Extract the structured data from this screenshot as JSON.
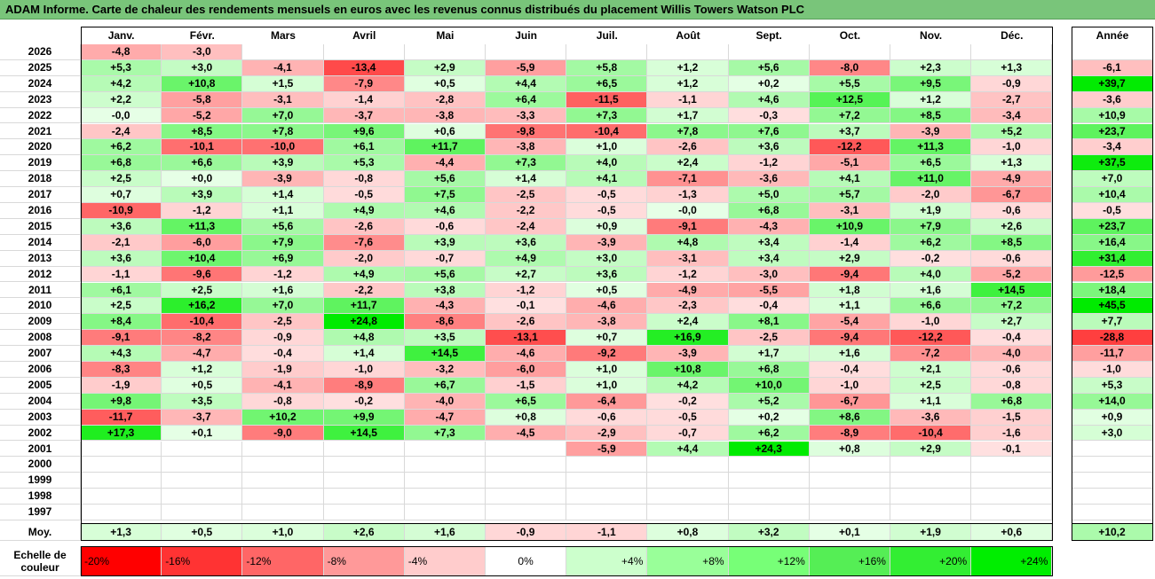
{
  "title": "ADAM Informe. Carte de chaleur des rendements mensuels en euros avec les revenus connus distribués du placement Willis Towers Watson PLC",
  "months": [
    "Janv.",
    "Févr.",
    "Mars",
    "Avril",
    "Mai",
    "Juin",
    "Juil.",
    "Août",
    "Sept.",
    "Oct.",
    "Nov.",
    "Déc."
  ],
  "year_col_label": "Année",
  "avg_label": "Moy.",
  "scale_label": "Echelle de couleur",
  "chart_data": {
    "type": "heatmap",
    "title": "ADAM Informe. Carte de chaleur des rendements mensuels en euros avec les revenus connus distribués du placement Willis Towers Watson PLC",
    "columns": [
      "Janv.",
      "Févr.",
      "Mars",
      "Avril",
      "Mai",
      "Juin",
      "Juil.",
      "Août",
      "Sept.",
      "Oct.",
      "Nov.",
      "Déc."
    ],
    "rows": [
      {
        "year": "2026",
        "values": [
          "-4,8",
          "-3,0",
          "",
          "",
          "",
          "",
          "",
          "",
          "",
          "",
          "",
          ""
        ],
        "annual": ""
      },
      {
        "year": "2025",
        "values": [
          "+5,3",
          "+3,0",
          "-4,1",
          "-13,4",
          "+2,9",
          "-5,9",
          "+5,8",
          "+1,2",
          "+5,6",
          "-8,0",
          "+2,3",
          "+1,3"
        ],
        "annual": "-6,1"
      },
      {
        "year": "2024",
        "values": [
          "+4,2",
          "+10,8",
          "+1,5",
          "-7,9",
          "+0,5",
          "+4,4",
          "+6,5",
          "+1,2",
          "+0,2",
          "+5,5",
          "+9,5",
          "-0,9"
        ],
        "annual": "+39,7"
      },
      {
        "year": "2023",
        "values": [
          "+2,2",
          "-5,8",
          "-3,1",
          "-1,4",
          "-2,8",
          "+6,4",
          "-11,5",
          "-1,1",
          "+4,6",
          "+12,5",
          "+1,2",
          "-2,7"
        ],
        "annual": "-3,6"
      },
      {
        "year": "2022",
        "values": [
          "-0,0",
          "-5,2",
          "+7,0",
          "-3,7",
          "-3,8",
          "-3,3",
          "+7,3",
          "+1,7",
          "-0,3",
          "+7,2",
          "+8,5",
          "-3,4"
        ],
        "annual": "+10,9"
      },
      {
        "year": "2021",
        "values": [
          "-2,4",
          "+8,5",
          "+7,8",
          "+9,6",
          "+0,6",
          "-9,8",
          "-10,4",
          "+7,8",
          "+7,6",
          "+3,7",
          "-3,9",
          "+5,2"
        ],
        "annual": "+23,7"
      },
      {
        "year": "2020",
        "values": [
          "+6,2",
          "-10,1",
          "-10,0",
          "+6,1",
          "+11,7",
          "-3,8",
          "+1,0",
          "-2,6",
          "+3,6",
          "-12,2",
          "+11,3",
          "-1,0"
        ],
        "annual": "-3,4"
      },
      {
        "year": "2019",
        "values": [
          "+6,8",
          "+6,6",
          "+3,9",
          "+5,3",
          "-4,4",
          "+7,3",
          "+4,0",
          "+2,4",
          "-1,2",
          "-5,1",
          "+6,5",
          "+1,3"
        ],
        "annual": "+37,5"
      },
      {
        "year": "2018",
        "values": [
          "+2,5",
          "+0,0",
          "-3,9",
          "-0,8",
          "+5,6",
          "+1,4",
          "+4,1",
          "-7,1",
          "-3,6",
          "+4,1",
          "+11,0",
          "-4,9"
        ],
        "annual": "+7,0"
      },
      {
        "year": "2017",
        "values": [
          "+0,7",
          "+3,9",
          "+1,4",
          "-0,5",
          "+7,5",
          "-2,5",
          "-0,5",
          "-1,3",
          "+5,0",
          "+5,7",
          "-2,0",
          "-6,7"
        ],
        "annual": "+10,4"
      },
      {
        "year": "2016",
        "values": [
          "-10,9",
          "-1,2",
          "+1,1",
          "+4,9",
          "+4,6",
          "-2,2",
          "-0,5",
          "-0,0",
          "+6,8",
          "-3,1",
          "+1,9",
          "-0,6"
        ],
        "annual": "-0,5"
      },
      {
        "year": "2015",
        "values": [
          "+3,6",
          "+11,3",
          "+5,6",
          "-2,6",
          "-0,6",
          "-2,4",
          "+0,9",
          "-9,1",
          "-4,3",
          "+10,9",
          "+7,9",
          "+2,6"
        ],
        "annual": "+23,7"
      },
      {
        "year": "2014",
        "values": [
          "-2,1",
          "-6,0",
          "+7,9",
          "-7,6",
          "+3,9",
          "+3,6",
          "-3,9",
          "+4,8",
          "+3,4",
          "-1,4",
          "+6,2",
          "+8,5"
        ],
        "annual": "+16,4"
      },
      {
        "year": "2013",
        "values": [
          "+3,6",
          "+10,4",
          "+6,9",
          "-2,0",
          "-0,7",
          "+4,9",
          "+3,0",
          "-3,1",
          "+3,4",
          "+2,9",
          "-0,2",
          "-0,6"
        ],
        "annual": "+31,4"
      },
      {
        "year": "2012",
        "values": [
          "-1,1",
          "-9,6",
          "-1,2",
          "+4,9",
          "+5,6",
          "+2,7",
          "+3,6",
          "-1,2",
          "-3,0",
          "-9,4",
          "+4,0",
          "-5,2"
        ],
        "annual": "-12,5"
      },
      {
        "year": "2011",
        "values": [
          "+6,1",
          "+2,5",
          "+1,6",
          "-2,2",
          "+3,8",
          "-1,2",
          "+0,5",
          "-4,9",
          "-5,5",
          "+1,8",
          "+1,6",
          "+14,5"
        ],
        "annual": "+18,4"
      },
      {
        "year": "2010",
        "values": [
          "+2,5",
          "+16,2",
          "+7,0",
          "+11,7",
          "-4,3",
          "-0,1",
          "-4,6",
          "-2,3",
          "-0,4",
          "+1,1",
          "+6,6",
          "+7,2"
        ],
        "annual": "+45,5"
      },
      {
        "year": "2009",
        "values": [
          "+8,4",
          "-10,4",
          "-2,5",
          "+24,8",
          "-8,6",
          "-2,6",
          "-3,8",
          "+2,4",
          "+8,1",
          "-5,4",
          "-1,0",
          "+2,7"
        ],
        "annual": "+7,7"
      },
      {
        "year": "2008",
        "values": [
          "-9,1",
          "-8,2",
          "-0,9",
          "+4,8",
          "+3,5",
          "-13,1",
          "+0,7",
          "+16,9",
          "-2,5",
          "-9,4",
          "-12,2",
          "-0,4"
        ],
        "annual": "-28,8"
      },
      {
        "year": "2007",
        "values": [
          "+4,3",
          "-4,7",
          "-0,4",
          "+1,4",
          "+14,5",
          "-4,6",
          "-9,2",
          "-3,9",
          "+1,7",
          "+1,6",
          "-7,2",
          "-4,0"
        ],
        "annual": "-11,7"
      },
      {
        "year": "2006",
        "values": [
          "-8,3",
          "+1,2",
          "-1,9",
          "-1,0",
          "-3,2",
          "-6,0",
          "+1,0",
          "+10,8",
          "+6,8",
          "-0,4",
          "+2,1",
          "-0,6"
        ],
        "annual": "-1,0"
      },
      {
        "year": "2005",
        "values": [
          "-1,9",
          "+0,5",
          "-4,1",
          "-8,9",
          "+6,7",
          "-1,5",
          "+1,0",
          "+4,2",
          "+10,0",
          "-1,0",
          "+2,5",
          "-0,8"
        ],
        "annual": "+5,3"
      },
      {
        "year": "2004",
        "values": [
          "+9,8",
          "+3,5",
          "-0,8",
          "-0,2",
          "-4,0",
          "+6,5",
          "-6,4",
          "-0,2",
          "+5,2",
          "-6,7",
          "+1,1",
          "+6,8"
        ],
        "annual": "+14,0"
      },
      {
        "year": "2003",
        "values": [
          "-11,7",
          "-3,7",
          "+10,2",
          "+9,9",
          "-4,7",
          "+0,8",
          "-0,6",
          "-0,5",
          "+0,2",
          "+8,6",
          "-3,6",
          "-1,5"
        ],
        "annual": "+0,9"
      },
      {
        "year": "2002",
        "values": [
          "+17,3",
          "+0,1",
          "-9,0",
          "+14,5",
          "+7,3",
          "-4,5",
          "-2,9",
          "-0,7",
          "+6,2",
          "-8,9",
          "-10,4",
          "-1,6"
        ],
        "annual": "+3,0"
      },
      {
        "year": "2001",
        "values": [
          "",
          "",
          "",
          "",
          "",
          "",
          "-5,9",
          "+4,4",
          "+24,3",
          "+0,8",
          "+2,9",
          "-0,1"
        ],
        "annual": ""
      },
      {
        "year": "2000",
        "values": [
          "",
          "",
          "",
          "",
          "",
          "",
          "",
          "",
          "",
          "",
          "",
          ""
        ],
        "annual": ""
      },
      {
        "year": "1999",
        "values": [
          "",
          "",
          "",
          "",
          "",
          "",
          "",
          "",
          "",
          "",
          "",
          ""
        ],
        "annual": ""
      },
      {
        "year": "1998",
        "values": [
          "",
          "",
          "",
          "",
          "",
          "",
          "",
          "",
          "",
          "",
          "",
          ""
        ],
        "annual": ""
      },
      {
        "year": "1997",
        "values": [
          "",
          "",
          "",
          "",
          "",
          "",
          "",
          "",
          "",
          "",
          "",
          ""
        ],
        "annual": ""
      }
    ],
    "averages": [
      "+1,3",
      "+0,5",
      "+1,0",
      "+2,6",
      "+1,6",
      "-0,9",
      "-1,1",
      "+0,8",
      "+3,2",
      "+0,1",
      "+1,9",
      "+0,6"
    ],
    "average_annual": "+10,2",
    "color_scale": [
      {
        "label": "-20%",
        "color": "#ff0000"
      },
      {
        "label": "-16%",
        "color": "#ff3333"
      },
      {
        "label": "-12%",
        "color": "#ff6666"
      },
      {
        "label": "-8%",
        "color": "#ff9999"
      },
      {
        "label": "-4%",
        "color": "#ffcccc"
      },
      {
        "label": "0%",
        "color": "#ffffff"
      },
      {
        "label": "+4%",
        "color": "#ccffcc"
      },
      {
        "label": "+8%",
        "color": "#99ff99"
      },
      {
        "label": "+12%",
        "color": "#77ff77"
      },
      {
        "label": "+16%",
        "color": "#55ee55"
      },
      {
        "label": "+20%",
        "color": "#33ee33"
      },
      {
        "label": "+24%",
        "color": "#00ee00"
      }
    ]
  }
}
